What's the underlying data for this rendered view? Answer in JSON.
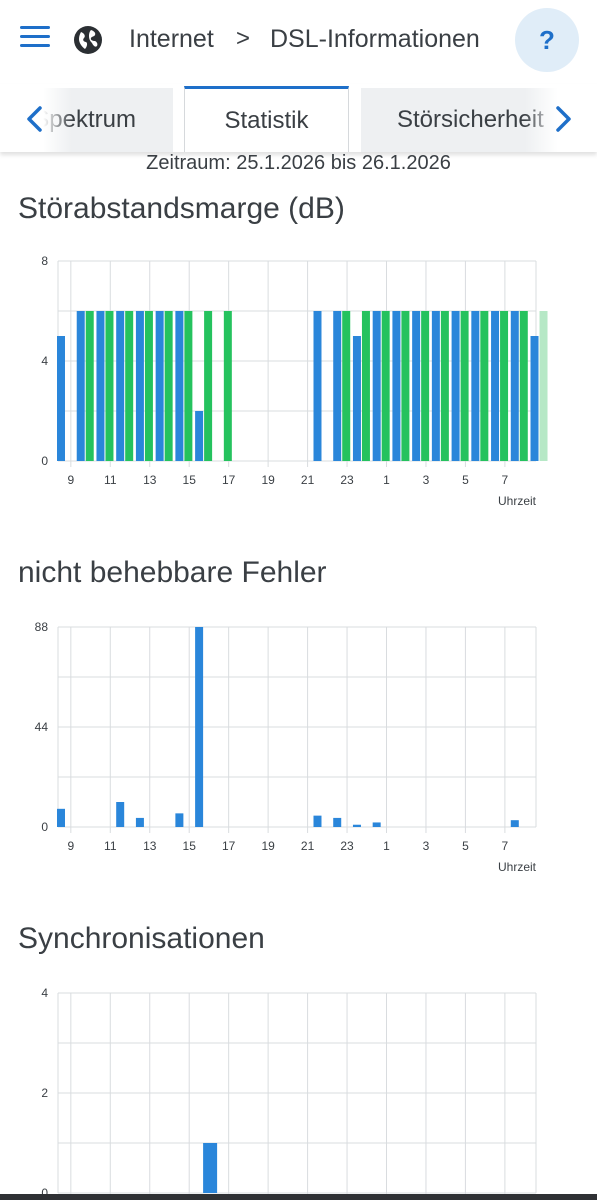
{
  "header": {
    "breadcrumb_root": "Internet",
    "breadcrumb_separator": ">",
    "breadcrumb_current": "DSL-Informationen",
    "help_label": "?"
  },
  "tabs": {
    "left": "Spektrum",
    "active": "Statistik",
    "right": "Störsicherheit"
  },
  "period": "Zeitraum: 25.1.2026 bis 26.1.2026",
  "colors": {
    "accent": "#1e6fc9",
    "series_blue": "#2a86da",
    "series_green": "#25c25e",
    "series_green_light": "#b6e8c6",
    "grid": "#d9dcdf"
  },
  "sections": {
    "snr_title": "Störabstandsmarge (dB)",
    "errors_title": "nicht behebbare Fehler",
    "sync_title": "Synchronisationen"
  },
  "chart_data": [
    {
      "type": "bar",
      "title": "Störabstandsmarge (dB)",
      "xlabel": "Uhrzeit",
      "ylim": [
        0,
        8
      ],
      "yticks": [
        "8",
        "4",
        "0"
      ],
      "xticks": [
        "9",
        "11",
        "13",
        "15",
        "17",
        "19",
        "21",
        "23",
        "1",
        "3",
        "5",
        "7"
      ],
      "categories": [
        "8",
        "9",
        "10",
        "11",
        "12",
        "13",
        "14",
        "15",
        "16",
        "17",
        "18",
        "19",
        "20",
        "21",
        "22",
        "23",
        "0",
        "1",
        "2",
        "3",
        "4",
        "5",
        "6",
        "7",
        "8"
      ],
      "series": [
        {
          "values": [
            5,
            6,
            6,
            6,
            6,
            6,
            6,
            2,
            null,
            null,
            null,
            null,
            null,
            6,
            6,
            5,
            6,
            6,
            6,
            6,
            6,
            6,
            6,
            6,
            5
          ]
        },
        {
          "values": [
            null,
            6,
            6,
            6,
            6,
            6,
            6,
            6,
            6,
            null,
            null,
            null,
            null,
            null,
            6,
            6,
            6,
            6,
            6,
            6,
            6,
            6,
            6,
            6,
            6
          ]
        }
      ],
      "partial_last_green": true
    },
    {
      "type": "bar",
      "title": "nicht behebbare Fehler",
      "xlabel": "Uhrzeit",
      "ylim": [
        0,
        88
      ],
      "yticks": [
        "88",
        "44",
        "0"
      ],
      "xticks": [
        "9",
        "11",
        "13",
        "15",
        "17",
        "19",
        "21",
        "23",
        "1",
        "3",
        "5",
        "7"
      ],
      "bars": [
        {
          "hour": 8,
          "value": 8
        },
        {
          "hour": 11,
          "value": 11
        },
        {
          "hour": 12,
          "value": 4
        },
        {
          "hour": 14,
          "value": 6
        },
        {
          "hour": 15,
          "value": 88
        },
        {
          "hour": 21,
          "value": 5
        },
        {
          "hour": 22,
          "value": 4
        },
        {
          "hour": 23,
          "value": 1
        },
        {
          "hour": 0,
          "value": 2
        },
        {
          "hour": 7,
          "value": 3
        }
      ]
    },
    {
      "type": "bar",
      "title": "Synchronisationen",
      "ylim": [
        0,
        4
      ],
      "yticks": [
        "4",
        "2",
        "0"
      ],
      "bars": [
        {
          "hour": 15,
          "value": 1
        }
      ]
    }
  ]
}
